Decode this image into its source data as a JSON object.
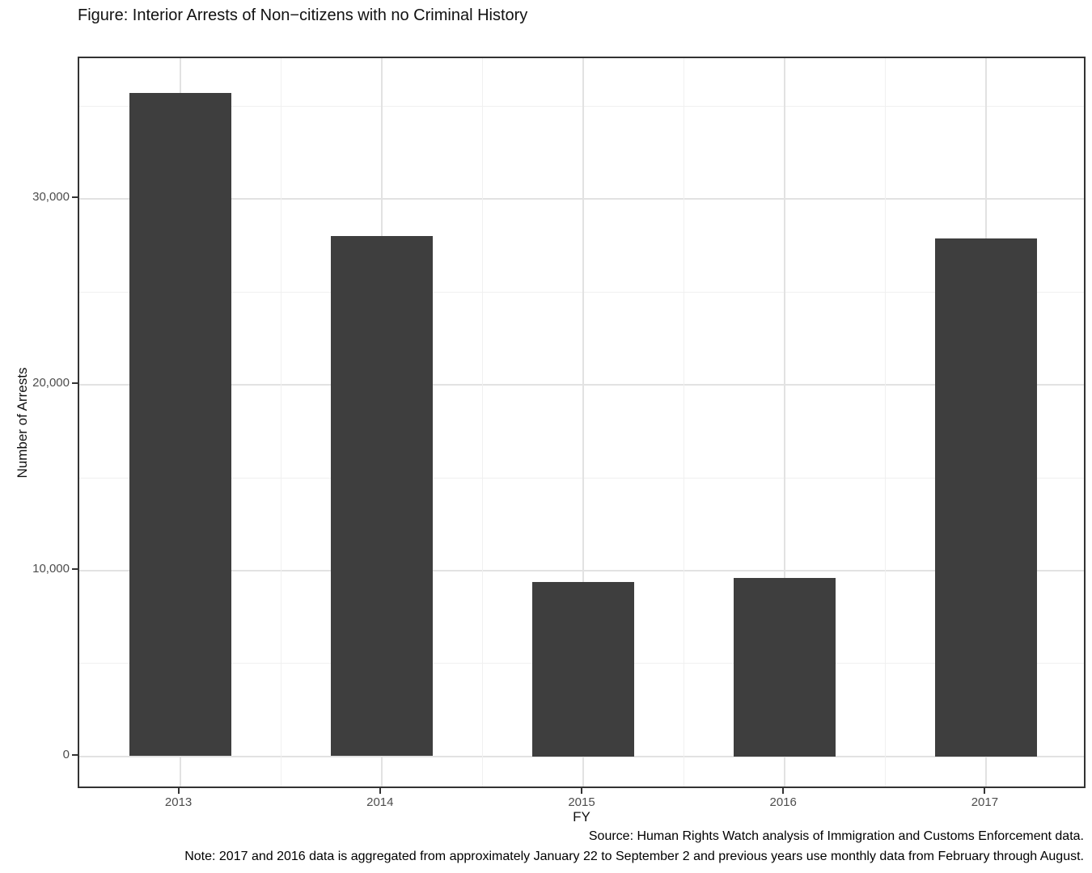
{
  "figure": {
    "title": "Figure: Interior Arrests of Non−citizens with no Criminal History",
    "source_line": "Source: Human Rights Watch analysis of Immigration and Customs Enforcement data.",
    "note_line": "Note: 2017 and 2016 data is aggregated from approximately January 22 to September 2 and previous years use monthly data from February through August."
  },
  "chart_data": {
    "type": "bar",
    "title": "Figure: Interior Arrests of Non−citizens with no Criminal History",
    "categories": [
      "2013",
      "2014",
      "2015",
      "2016",
      "2017"
    ],
    "values": [
      35700,
      28000,
      9400,
      9600,
      27900
    ],
    "xlabel": "FY",
    "ylabel": "Number of Arrests",
    "y_ticks": [
      0,
      10000,
      20000,
      30000
    ],
    "y_tick_labels": [
      "0",
      "10,000",
      "20,000",
      "30,000"
    ],
    "y_minor_ticks": [
      5000,
      15000,
      25000,
      35000
    ],
    "ylim": [
      -1790,
      37590
    ],
    "grid": "major and minor gridlines on, white panel background, dark panel border",
    "legend_position": "none",
    "bar_width_fraction_of_panel": 0.101
  },
  "colors": {
    "bar_fill": "#3e3e3e",
    "panel_border": "#333333",
    "grid_major": "#e2e2e2",
    "grid_minor": "#f0f0f0",
    "axis_tick_text": "#4d4d4d",
    "text": "#000000",
    "background": "#ffffff"
  }
}
